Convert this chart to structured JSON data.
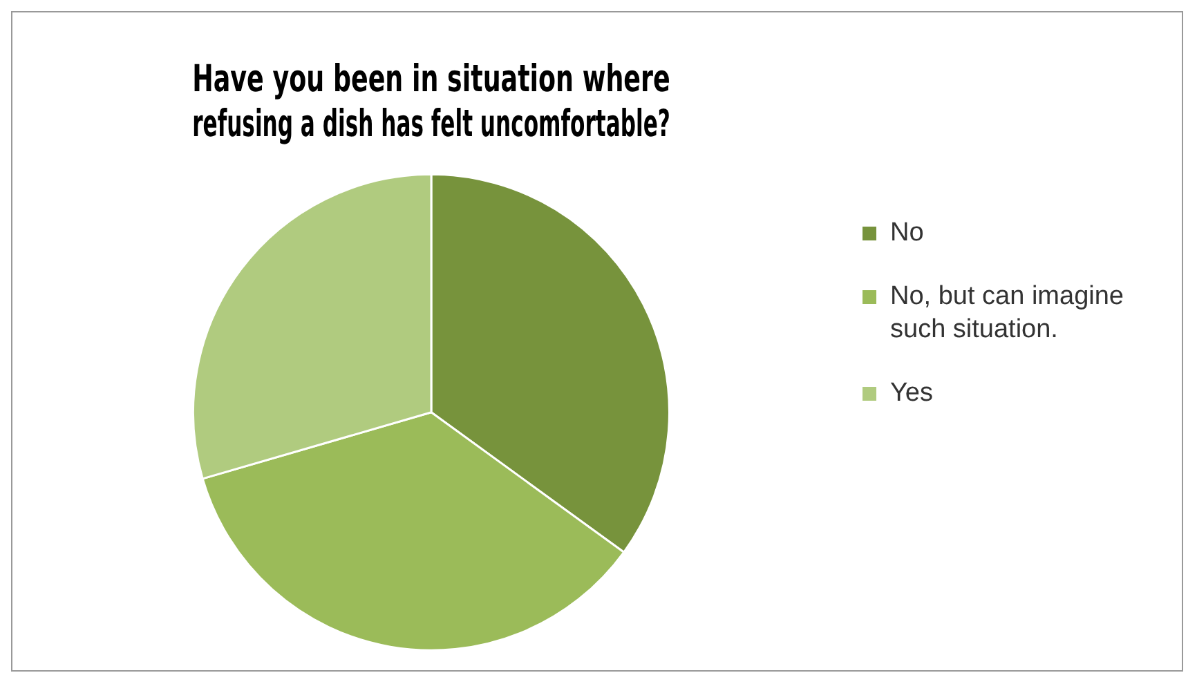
{
  "chart_data": {
    "type": "pie",
    "title": "Have you been in situation where refusing a dish has felt uncomfortable?",
    "categories": [
      "No",
      "No, but can imagine such situation.",
      "Yes"
    ],
    "values": [
      35,
      35.5,
      29.5
    ],
    "colors": [
      "#77933c",
      "#9bbb59",
      "#b0cb7f"
    ],
    "legend": "right"
  }
}
